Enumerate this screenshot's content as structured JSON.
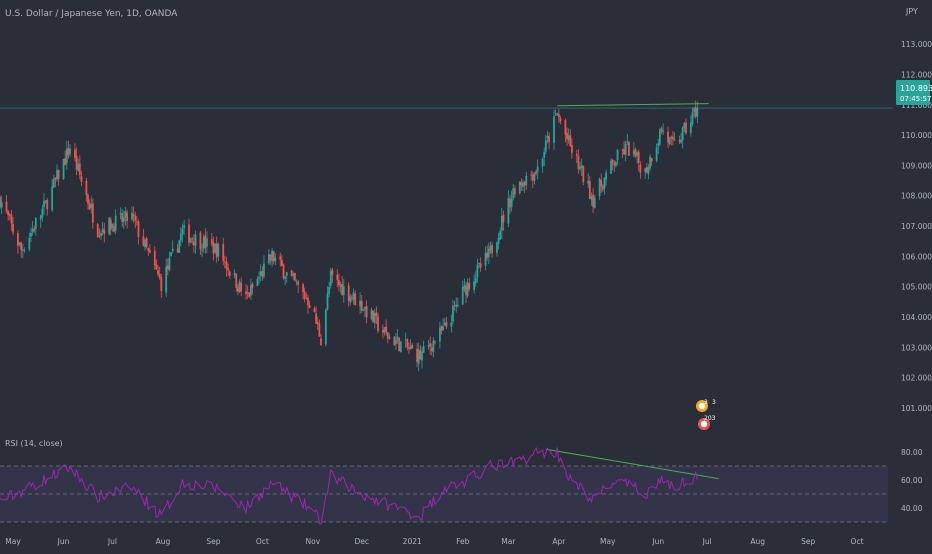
{
  "header": {
    "symbol_title": "U.S. Dollar / Japanese Yen, 1D, OANDA",
    "currency": "JPY"
  },
  "price_label": {
    "price": "110.893",
    "countdown": "07:45:57"
  },
  "price_axis": [
    "113.000",
    "112.000",
    "111.000",
    "110.000",
    "109.000",
    "108.000",
    "107.000",
    "106.000",
    "105.000",
    "104.000",
    "103.000",
    "102.000",
    "101.000"
  ],
  "time_axis": [
    "May",
    "Jun",
    "Jul",
    "Aug",
    "Sep",
    "Oct",
    "Nov",
    "Dec",
    "2021",
    "Feb",
    "Mar",
    "Apr",
    "May",
    "Jun",
    "Jul",
    "Aug",
    "Sep",
    "Oct"
  ],
  "rsi_panel": {
    "title": "RSI (14, close)",
    "axis": [
      "80.00",
      "60.00",
      "40.00"
    ],
    "upper_band": 70,
    "middle_band": 50,
    "lower_band": 30,
    "ylim": [
      30,
      80
    ]
  },
  "events": {
    "earnings_counts": [
      "3",
      "3"
    ],
    "dividend_label": "203"
  },
  "colors": {
    "background": "#2a2e39",
    "up": "#26a69a",
    "down": "#ef5350",
    "rsi_line": "#9c27b0",
    "trendline": "#4caf50",
    "axis_text": "#b2b5be"
  },
  "chart_data": [
    {
      "type": "candlestick",
      "title": "U.S. Dollar / Japanese Yen, 1D, OANDA",
      "ylim": [
        100.6,
        113.6
      ],
      "x_range": [
        "2020-04-23",
        "2021-10-20"
      ],
      "last_close": 110.893,
      "trendline": {
        "from": [
          "2021-03-31",
          110.97
        ],
        "to": [
          "2021-07-02",
          111.04
        ]
      },
      "anchor_points": [
        {
          "date": "2020-04-23",
          "close": 107.9
        },
        {
          "date": "2020-05-06",
          "close": 106.2
        },
        {
          "date": "2020-05-21",
          "close": 107.7
        },
        {
          "date": "2020-06-05",
          "close": 109.6
        },
        {
          "date": "2020-06-22",
          "close": 106.9
        },
        {
          "date": "2020-07-13",
          "close": 107.3
        },
        {
          "date": "2020-07-31",
          "close": 105.1
        },
        {
          "date": "2020-08-13",
          "close": 106.8
        },
        {
          "date": "2020-09-04",
          "close": 106.2
        },
        {
          "date": "2020-09-21",
          "close": 104.6
        },
        {
          "date": "2020-10-07",
          "close": 106.0
        },
        {
          "date": "2020-10-30",
          "close": 104.5
        },
        {
          "date": "2020-11-06",
          "close": 103.3
        },
        {
          "date": "2020-11-12",
          "close": 105.3
        },
        {
          "date": "2020-12-01",
          "close": 104.4
        },
        {
          "date": "2020-12-16",
          "close": 103.4
        },
        {
          "date": "2021-01-06",
          "close": 102.7
        },
        {
          "date": "2021-01-21",
          "close": 103.6
        },
        {
          "date": "2021-02-03",
          "close": 105.0
        },
        {
          "date": "2021-02-17",
          "close": 106.0
        },
        {
          "date": "2021-03-05",
          "close": 108.3
        },
        {
          "date": "2021-03-19",
          "close": 108.9
        },
        {
          "date": "2021-03-31",
          "close": 110.7
        },
        {
          "date": "2021-04-08",
          "close": 109.6
        },
        {
          "date": "2021-04-22",
          "close": 107.9
        },
        {
          "date": "2021-05-06",
          "close": 109.2
        },
        {
          "date": "2021-05-13",
          "close": 109.6
        },
        {
          "date": "2021-05-24",
          "close": 108.8
        },
        {
          "date": "2021-06-03",
          "close": 110.2
        },
        {
          "date": "2021-06-10",
          "close": 109.6
        },
        {
          "date": "2021-06-18",
          "close": 110.2
        },
        {
          "date": "2021-06-25",
          "close": 110.9
        }
      ]
    },
    {
      "type": "line",
      "title": "RSI (14, close)",
      "ylim": [
        30,
        80
      ],
      "bands": [
        70,
        50,
        30
      ],
      "trendline": {
        "from": [
          "2021-03-24",
          82
        ],
        "to": [
          "2021-07-08",
          61
        ]
      },
      "anchor_points": [
        {
          "date": "2020-04-23",
          "value": 45
        },
        {
          "date": "2020-05-06",
          "value": 52
        },
        {
          "date": "2020-06-05",
          "value": 69
        },
        {
          "date": "2020-06-22",
          "value": 48
        },
        {
          "date": "2020-07-13",
          "value": 55
        },
        {
          "date": "2020-07-31",
          "value": 34
        },
        {
          "date": "2020-08-13",
          "value": 58
        },
        {
          "date": "2020-09-04",
          "value": 54
        },
        {
          "date": "2020-09-21",
          "value": 40
        },
        {
          "date": "2020-10-07",
          "value": 58
        },
        {
          "date": "2020-10-30",
          "value": 40
        },
        {
          "date": "2020-11-06",
          "value": 31
        },
        {
          "date": "2020-11-12",
          "value": 63
        },
        {
          "date": "2020-12-01",
          "value": 50
        },
        {
          "date": "2020-12-16",
          "value": 43
        },
        {
          "date": "2021-01-06",
          "value": 34
        },
        {
          "date": "2021-01-21",
          "value": 55
        },
        {
          "date": "2021-02-03",
          "value": 58
        },
        {
          "date": "2021-02-17",
          "value": 70
        },
        {
          "date": "2021-03-05",
          "value": 72
        },
        {
          "date": "2021-03-19",
          "value": 80
        },
        {
          "date": "2021-03-31",
          "value": 80
        },
        {
          "date": "2021-04-08",
          "value": 60
        },
        {
          "date": "2021-04-22",
          "value": 46
        },
        {
          "date": "2021-05-06",
          "value": 60
        },
        {
          "date": "2021-05-24",
          "value": 50
        },
        {
          "date": "2021-06-03",
          "value": 61
        },
        {
          "date": "2021-06-10",
          "value": 54
        },
        {
          "date": "2021-06-25",
          "value": 64
        }
      ]
    }
  ]
}
